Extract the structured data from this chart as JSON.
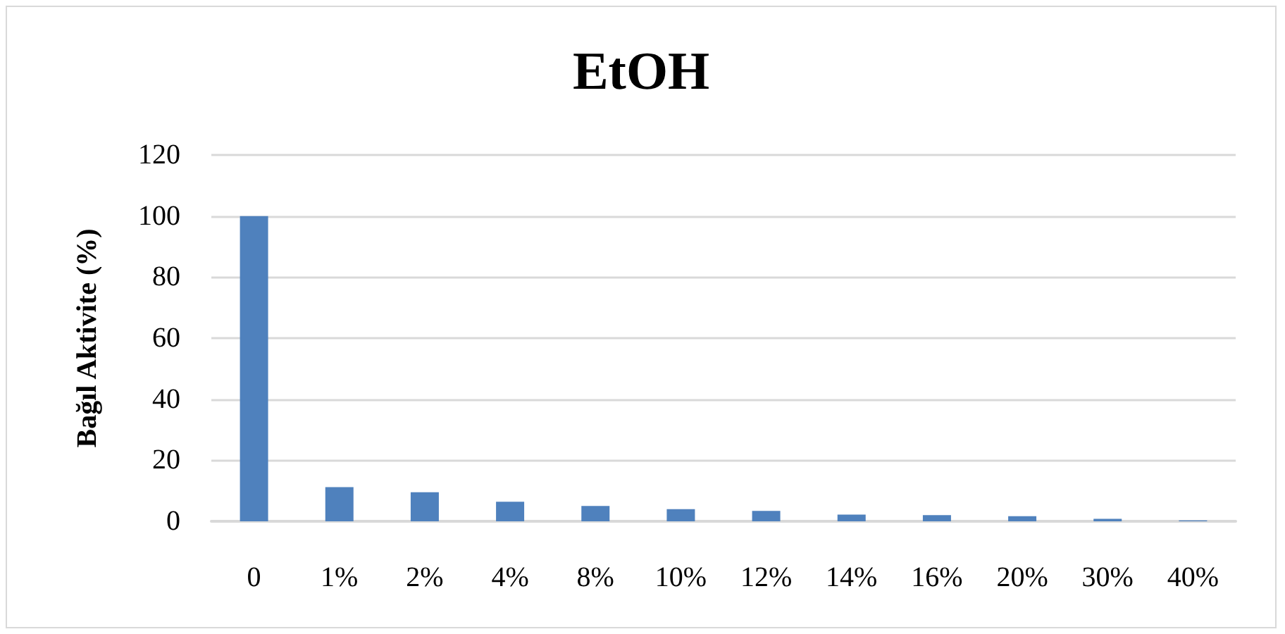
{
  "chart_data": {
    "type": "bar",
    "title": "EtOH",
    "ylabel": "Bağıl Aktivite (%)",
    "categories": [
      "0",
      "1%",
      "2%",
      "4%",
      "8%",
      "10%",
      "12%",
      "14%",
      "16%",
      "20%",
      "30%",
      "40%"
    ],
    "values": [
      100,
      11.2,
      9.5,
      6.4,
      5.0,
      4.0,
      3.4,
      2.2,
      2.0,
      1.7,
      0.8,
      0.3
    ],
    "color": "#4f81bd",
    "ylim": [
      0,
      120
    ],
    "yticks": [
      0,
      20,
      40,
      60,
      80,
      100,
      120
    ],
    "grid": "y"
  }
}
